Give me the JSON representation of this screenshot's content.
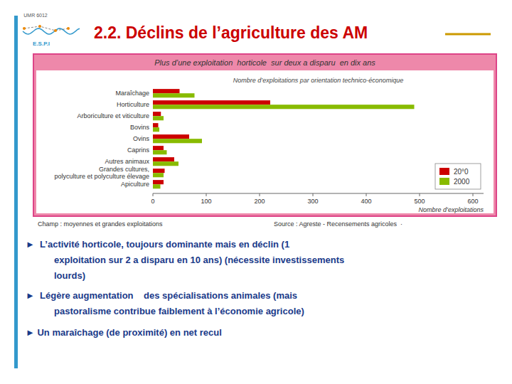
{
  "chart_data": {
    "type": "bar",
    "orientation": "horizontal",
    "title": "Plus d’une exploitation  horticole  sur deux a disparu  en dix ans",
    "subtitle": "Nombre d’exploitations par orientation technico-économique",
    "xlabel": "Nombre d’exploitations",
    "categories": [
      "Apiculture",
      "Grandes cultures,\npolyculture et polyculture élevage",
      "Autres animaux",
      "Caprins",
      "Ovins",
      "Bovins",
      "Arboriculture et viticulture",
      "Horticulture",
      "Maraîchage"
    ],
    "series": [
      {
        "name": "20°0",
        "color": "#cc0000",
        "values": [
          20,
          22,
          40,
          20,
          68,
          10,
          15,
          220,
          50
        ]
      },
      {
        "name": "2000",
        "color": "#88bb00",
        "values": [
          14,
          20,
          48,
          26,
          92,
          12,
          20,
          490,
          78
        ]
      }
    ],
    "xlim": [
      0,
      620
    ],
    "xticks": [
      0,
      100,
      200,
      300,
      400,
      500,
      600
    ],
    "grid": false,
    "legend": "lower right",
    "annotations": [
      "2.2. Déclins de l’agriculture des AM",
      "UMR 6012",
      "E.S.P.I",
      "Champ : moyennes et grandes exploitations",
      "Source : Agreste - Recensements agricoles  ·",
      "►  L’activité horticole, toujours dominante mais en déclin (1",
      "exploitation sur 2 a disparu en 10 ans) (nécessite investissements",
      "lourds)",
      "►  Légère augmentation    des spécialisations animales (mais",
      "pastoralisme contribue faiblement à l’économie agricole)",
      "► Un maraîchage (de proximité) en net recul"
    ]
  }
}
